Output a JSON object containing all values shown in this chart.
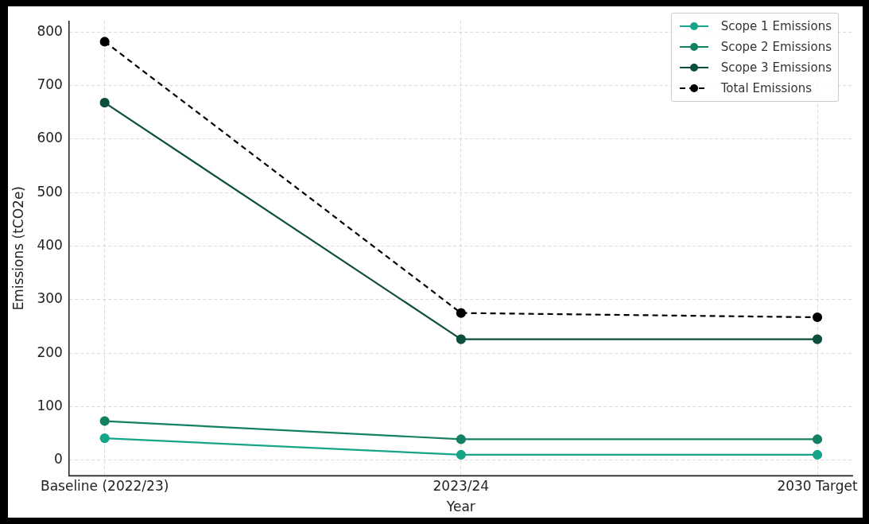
{
  "chart_data": {
    "type": "line",
    "xlabel": "Year",
    "ylabel": "Emissions (tCO2e)",
    "categories": [
      "Baseline (2022/23)",
      "2023/24",
      "2030 Target"
    ],
    "ylim": [
      -29,
      821
    ],
    "yticks": [
      0,
      100,
      200,
      300,
      400,
      500,
      600,
      700,
      800
    ],
    "grid": true,
    "legend": "top right",
    "marker": "circle",
    "series": [
      {
        "name": "Scope 1 Emissions",
        "color": "#17a589",
        "values": [
          41,
          10,
          10
        ]
      },
      {
        "name": "Scope 2 Emissions",
        "color": "#148063",
        "values": [
          73,
          39,
          39
        ]
      },
      {
        "name": "Scope 3 Emissions",
        "color": "#0b4f3c",
        "values": [
          668,
          226,
          226
        ]
      },
      {
        "name": "Total Emissions",
        "color": "#000000",
        "values": [
          782,
          275,
          267
        ],
        "line_style": "dashed"
      }
    ]
  }
}
